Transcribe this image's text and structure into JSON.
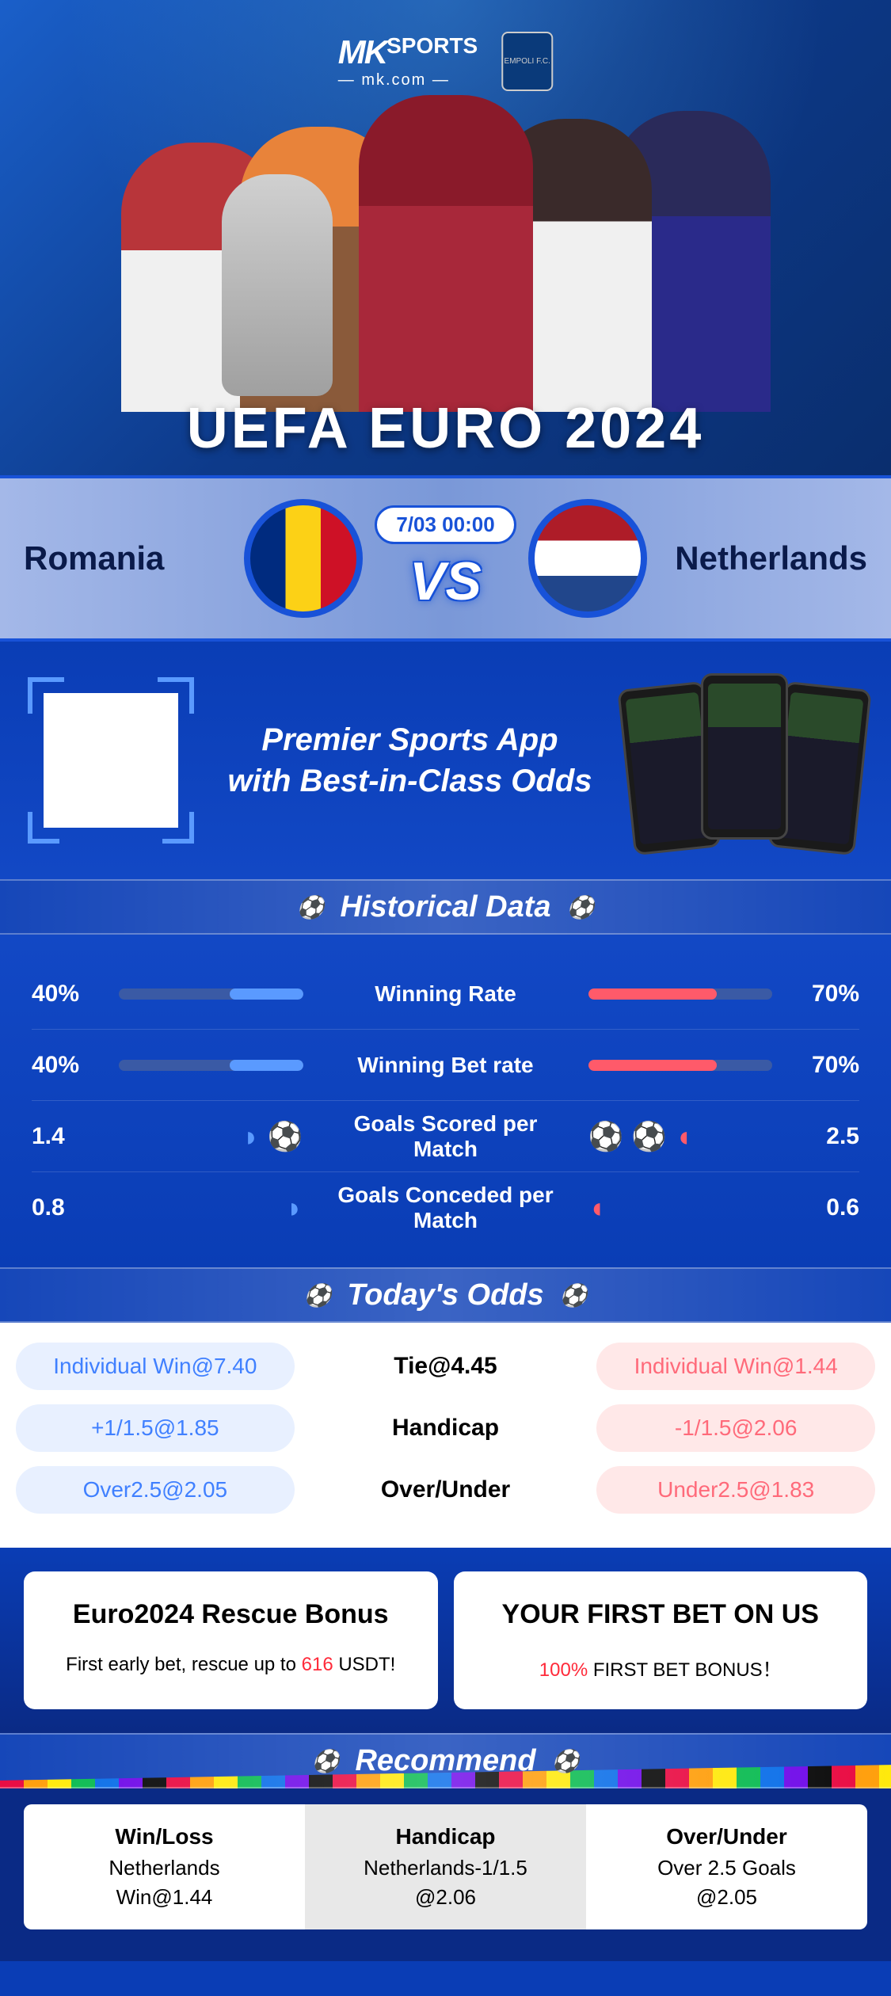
{
  "hero": {
    "logo_main": "MK",
    "logo_top": "SPORTS",
    "logo_sub": "— mk.com —",
    "badge_text": "EMPOLI F.C.",
    "title": "UEFA EURO 2024"
  },
  "match": {
    "team_left": "Romania",
    "team_right": "Netherlands",
    "date": "7/03 00:00",
    "vs": "VS",
    "flag_left_colors": [
      "#002b7f",
      "#fcd116",
      "#ce1126"
    ],
    "flag_right_colors": [
      "#ae1c28",
      "#ffffff",
      "#21468b"
    ]
  },
  "promo": {
    "line1": "Premier Sports App",
    "line2": "with Best-in-Class Odds"
  },
  "historical": {
    "header": "Historical Data",
    "rows": [
      {
        "type": "bar",
        "left_val": "40%",
        "right_val": "70%",
        "label": "Winning Rate",
        "left_pct": 40,
        "right_pct": 70
      },
      {
        "type": "bar",
        "left_val": "40%",
        "right_val": "70%",
        "label": "Winning Bet rate",
        "left_pct": 40,
        "right_pct": 70
      },
      {
        "type": "balls",
        "left_val": "1.4",
        "right_val": "2.5",
        "label": "Goals Scored per Match",
        "left_balls": "◗ ⚽",
        "right_balls": "⚽ ⚽ ◖"
      },
      {
        "type": "balls",
        "left_val": "0.8",
        "right_val": "0.6",
        "label": "Goals Conceded per Match",
        "left_balls": "◗",
        "right_balls": "◖"
      }
    ]
  },
  "odds": {
    "header": "Today's Odds",
    "rows": [
      {
        "left": "Individual Win@7.40",
        "center": "Tie@4.45",
        "right": "Individual Win@1.44"
      },
      {
        "left": "+1/1.5@1.85",
        "center": "Handicap",
        "right": "-1/1.5@2.06"
      },
      {
        "left": "Over2.5@2.05",
        "center": "Over/Under",
        "right": "Under2.5@1.83"
      }
    ]
  },
  "bonus": {
    "left_title": "Euro2024 Rescue Bonus",
    "left_sub_pre": "First early bet, rescue up to ",
    "left_sub_amt": "616",
    "left_sub_post": " USDT!",
    "right_title": "YOUR FIRST BET ON US",
    "right_sub_pre": "",
    "right_sub_amt": "100%",
    "right_sub_post": " FIRST BET BONUS！"
  },
  "recommend": {
    "header": "Recommend",
    "cells": [
      {
        "h": "Win/Loss",
        "t": "Netherlands",
        "o": "Win@1.44"
      },
      {
        "h": "Handicap",
        "t": "Netherlands-1/1.5",
        "o": "@2.06"
      },
      {
        "h": "Over/Under",
        "t": "Over 2.5 Goals",
        "o": "@2.05"
      }
    ]
  },
  "colors": {
    "primary_blue": "#0a3db5",
    "accent_blue": "#5a9aff",
    "accent_red": "#ff5a6a",
    "pill_blue_bg": "#e8f0ff",
    "pill_blue_txt": "#4080ff",
    "pill_red_bg": "#ffe8e8",
    "pill_red_txt": "#ff6a7a"
  }
}
